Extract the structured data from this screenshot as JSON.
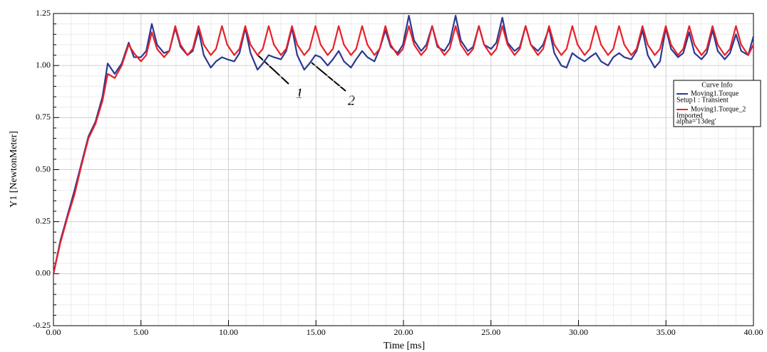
{
  "chart_data": {
    "type": "line",
    "xlabel": "Time [ms]",
    "ylabel": "Y1 [NewtonMeter]",
    "x": [
      0,
      0.4,
      0.8,
      1.2,
      1.6,
      2.0,
      2.4,
      2.8,
      3.1,
      3.5,
      3.9,
      4.3,
      4.6,
      5.0,
      5.3,
      5.62,
      5.92,
      6.32,
      6.62,
      6.96,
      7.26,
      7.66,
      7.96,
      8.29,
      8.59,
      8.99,
      9.29,
      9.63,
      9.93,
      10.33,
      10.63,
      10.96,
      11.26,
      11.66,
      11.96,
      12.3,
      12.6,
      13.0,
      13.3,
      13.63,
      13.93,
      14.33,
      14.63,
      14.97,
      15.27,
      15.67,
      15.97,
      16.3,
      16.6,
      17.0,
      17.3,
      17.64,
      17.94,
      18.34,
      18.64,
      18.97,
      19.27,
      19.67,
      19.97,
      20.31,
      20.61,
      21.01,
      21.31,
      21.64,
      21.94,
      22.34,
      22.64,
      22.98,
      23.28,
      23.68,
      23.98,
      24.31,
      24.61,
      25.01,
      25.31,
      25.65,
      25.95,
      26.35,
      26.65,
      26.98,
      27.28,
      27.68,
      27.98,
      28.32,
      28.62,
      29.02,
      29.32,
      29.65,
      29.95,
      30.35,
      30.65,
      30.99,
      31.29,
      31.69,
      31.99,
      32.32,
      32.62,
      33.02,
      33.32,
      33.66,
      33.96,
      34.36,
      34.66,
      34.99,
      35.29,
      35.69,
      35.99,
      36.33,
      36.63,
      37.03,
      37.33,
      37.66,
      37.96,
      38.36,
      38.66,
      39.0,
      39.3,
      39.7,
      40.0
    ],
    "series": [
      {
        "name": "Moving1.Torque",
        "sublabel": [
          "Setup1 : Transient"
        ],
        "color": "#2b3990",
        "values": [
          0,
          0.16,
          0.28,
          0.4,
          0.53,
          0.66,
          0.73,
          0.85,
          1.01,
          0.96,
          1.01,
          1.11,
          1.04,
          1.04,
          1.07,
          1.2,
          1.1,
          1.06,
          1.07,
          1.18,
          1.09,
          1.05,
          1.07,
          1.17,
          1.05,
          0.99,
          1.02,
          1.04,
          1.03,
          1.02,
          1.06,
          1.18,
          1.06,
          0.98,
          1.01,
          1.05,
          1.04,
          1.03,
          1.07,
          1.18,
          1.05,
          0.98,
          1.01,
          1.05,
          1.04,
          1.0,
          1.03,
          1.07,
          1.02,
          0.99,
          1.03,
          1.07,
          1.04,
          1.02,
          1.08,
          1.17,
          1.09,
          1.06,
          1.1,
          1.24,
          1.12,
          1.07,
          1.1,
          1.19,
          1.09,
          1.07,
          1.11,
          1.24,
          1.12,
          1.07,
          1.09,
          1.19,
          1.1,
          1.08,
          1.11,
          1.23,
          1.11,
          1.07,
          1.09,
          1.19,
          1.1,
          1.07,
          1.1,
          1.18,
          1.06,
          1.0,
          0.99,
          1.06,
          1.04,
          1.02,
          1.04,
          1.06,
          1.02,
          1.0,
          1.04,
          1.06,
          1.04,
          1.03,
          1.07,
          1.17,
          1.05,
          0.99,
          1.02,
          1.18,
          1.08,
          1.04,
          1.06,
          1.16,
          1.06,
          1.03,
          1.06,
          1.17,
          1.07,
          1.03,
          1.06,
          1.15,
          1.07,
          1.05,
          1.14
        ]
      },
      {
        "name": "Moving1.Torque_2",
        "sublabel": [
          "Imported",
          "alpha='13deg'"
        ],
        "color": "#e8202a",
        "values": [
          0,
          0.15,
          0.27,
          0.38,
          0.52,
          0.65,
          0.72,
          0.83,
          0.96,
          0.94,
          1.0,
          1.1,
          1.06,
          1.02,
          1.05,
          1.16,
          1.08,
          1.04,
          1.07,
          1.19,
          1.1,
          1.05,
          1.08,
          1.19,
          1.1,
          1.05,
          1.08,
          1.19,
          1.1,
          1.05,
          1.08,
          1.19,
          1.1,
          1.05,
          1.08,
          1.19,
          1.1,
          1.05,
          1.08,
          1.19,
          1.1,
          1.05,
          1.08,
          1.19,
          1.1,
          1.05,
          1.08,
          1.19,
          1.1,
          1.05,
          1.08,
          1.19,
          1.1,
          1.05,
          1.08,
          1.19,
          1.1,
          1.05,
          1.08,
          1.19,
          1.1,
          1.05,
          1.08,
          1.19,
          1.1,
          1.05,
          1.08,
          1.19,
          1.1,
          1.05,
          1.08,
          1.19,
          1.1,
          1.05,
          1.08,
          1.19,
          1.1,
          1.05,
          1.08,
          1.19,
          1.1,
          1.05,
          1.08,
          1.19,
          1.1,
          1.05,
          1.08,
          1.19,
          1.1,
          1.05,
          1.08,
          1.19,
          1.1,
          1.05,
          1.08,
          1.19,
          1.1,
          1.05,
          1.08,
          1.19,
          1.1,
          1.05,
          1.08,
          1.19,
          1.1,
          1.05,
          1.08,
          1.19,
          1.1,
          1.05,
          1.08,
          1.19,
          1.1,
          1.05,
          1.08,
          1.19,
          1.1,
          1.05,
          1.1
        ]
      }
    ],
    "legend_title": "Curve Info",
    "legend_position": "right",
    "annotations": [
      {
        "text": "1"
      },
      {
        "text": "2"
      }
    ],
    "xlim": [
      0,
      40
    ],
    "ylim": [
      -0.25,
      1.25
    ],
    "xticks": [
      {
        "value": 0,
        "label": "0.00"
      },
      {
        "value": 5,
        "label": "5.00"
      },
      {
        "value": 10,
        "label": "10.00"
      },
      {
        "value": 15,
        "label": "15.00"
      },
      {
        "value": 20,
        "label": "20.00"
      },
      {
        "value": 25,
        "label": "25.00"
      },
      {
        "value": 30,
        "label": "30.00"
      },
      {
        "value": 35,
        "label": "35.00"
      },
      {
        "value": 40,
        "label": "40.00"
      }
    ],
    "yticks": [
      {
        "value": -0.25,
        "label": "-0.25"
      },
      {
        "value": 0,
        "label": "0.00"
      },
      {
        "value": 0.25,
        "label": "0.25"
      },
      {
        "value": 0.5,
        "label": "0.50"
      },
      {
        "value": 0.75,
        "label": "0.75"
      },
      {
        "value": 1,
        "label": "1.00"
      },
      {
        "value": 1.25,
        "label": "1.25"
      }
    ],
    "grid": true,
    "minor_grid": true
  }
}
